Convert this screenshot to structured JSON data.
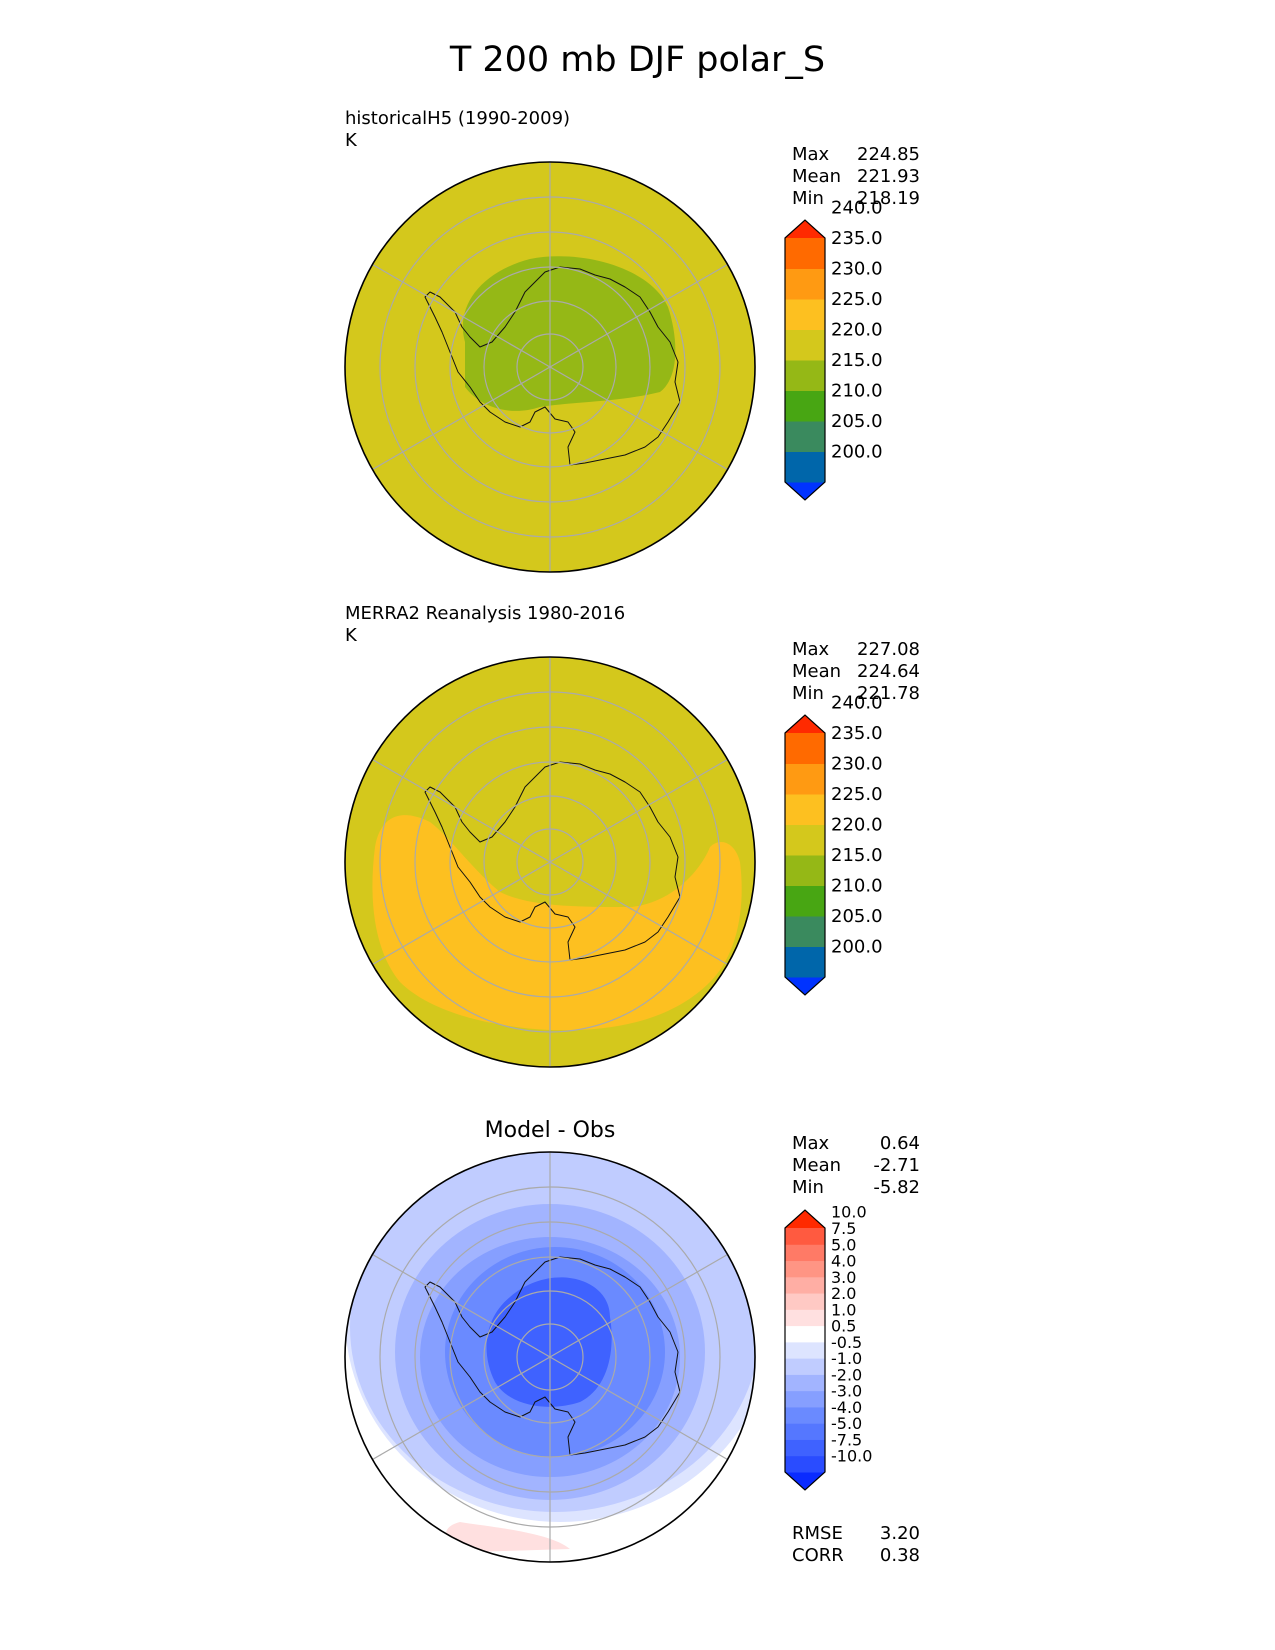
{
  "figure": {
    "title": "T 200 mb DJF polar_S"
  },
  "panels": [
    {
      "label_line1": "historicalH5 (1990-2009)",
      "label_line2": "K",
      "stats": [
        {
          "label": "Max",
          "value": "224.85"
        },
        {
          "label": "Mean",
          "value": "221.93"
        },
        {
          "label": "Min",
          "value": "218.19"
        }
      ],
      "colorbar_key": "abs"
    },
    {
      "label_line1": "MERRA2 Reanalysis 1980-2016",
      "label_line2": "K",
      "stats": [
        {
          "label": "Max",
          "value": "227.08"
        },
        {
          "label": "Mean",
          "value": "224.64"
        },
        {
          "label": "Min",
          "value": "221.78"
        }
      ],
      "colorbar_key": "abs"
    },
    {
      "title": "Model - Obs",
      "stats": [
        {
          "label": "Max",
          "value": "0.64"
        },
        {
          "label": "Mean",
          "value": "-2.71"
        },
        {
          "label": "Min",
          "value": "-5.82"
        }
      ],
      "extra_stats": [
        {
          "label": "RMSE",
          "value": "3.20"
        },
        {
          "label": "CORR",
          "value": "0.38"
        }
      ],
      "colorbar_key": "diff"
    }
  ],
  "chart_data": [
    {
      "type": "heatmap",
      "title": "historicalH5 (1990-2009)",
      "units": "K",
      "projection": "south polar stereographic",
      "stats": {
        "max": 224.85,
        "mean": 221.93,
        "min": 218.19
      },
      "colorbar": {
        "levels": [
          200.0,
          205.0,
          210.0,
          215.0,
          220.0,
          225.0,
          230.0,
          235.0,
          240.0
        ],
        "tick_labels": [
          "200.0",
          "205.0",
          "210.0",
          "215.0",
          "220.0",
          "225.0",
          "230.0",
          "235.0",
          "240.0"
        ],
        "colors": [
          "#0033ff",
          "#0066aa",
          "#3a8a5e",
          "#48a613",
          "#95b816",
          "#d4c81c",
          "#fdc020",
          "#ff9a12",
          "#ff6a00",
          "#ff2a00"
        ],
        "extend": "both"
      }
    },
    {
      "type": "heatmap",
      "title": "MERRA2 Reanalysis 1980-2016",
      "units": "K",
      "projection": "south polar stereographic",
      "stats": {
        "max": 227.08,
        "mean": 224.64,
        "min": 221.78
      },
      "colorbar": {
        "levels": [
          200.0,
          205.0,
          210.0,
          215.0,
          220.0,
          225.0,
          230.0,
          235.0,
          240.0
        ],
        "tick_labels": [
          "200.0",
          "205.0",
          "210.0",
          "215.0",
          "220.0",
          "225.0",
          "230.0",
          "235.0",
          "240.0"
        ],
        "colors": [
          "#0033ff",
          "#0066aa",
          "#3a8a5e",
          "#48a613",
          "#95b816",
          "#d4c81c",
          "#fdc020",
          "#ff9a12",
          "#ff6a00",
          "#ff2a00"
        ],
        "extend": "both"
      }
    },
    {
      "type": "heatmap",
      "title": "Model - Obs",
      "projection": "south polar stereographic",
      "stats": {
        "max": 0.64,
        "mean": -2.71,
        "min": -5.82,
        "rmse": 3.2,
        "corr": 0.38
      },
      "colorbar": {
        "levels": [
          -10.0,
          -7.5,
          -5.0,
          -4.0,
          -3.0,
          -2.0,
          -1.0,
          -0.5,
          0.5,
          1.0,
          2.0,
          3.0,
          4.0,
          5.0,
          7.5,
          10.0
        ],
        "tick_labels": [
          "-10.0",
          "-7.5",
          "-5.0",
          "-4.0",
          "-3.0",
          "-2.0",
          "-1.0",
          "-0.5",
          "0.5",
          "1.0",
          "2.0",
          "3.0",
          "4.0",
          "5.0",
          "7.5",
          "10.0"
        ],
        "colors": [
          "#0a2bff",
          "#2a4cff",
          "#3f62ff",
          "#5577ff",
          "#6a8aff",
          "#869fff",
          "#a2b4ff",
          "#c0ccff",
          "#dde4ff",
          "#ffffff",
          "#ffe0e0",
          "#ffc9c4",
          "#ffaea4",
          "#ff9584",
          "#ff7a66",
          "#ff5a40",
          "#ff2a00"
        ],
        "extend": "both"
      }
    }
  ]
}
